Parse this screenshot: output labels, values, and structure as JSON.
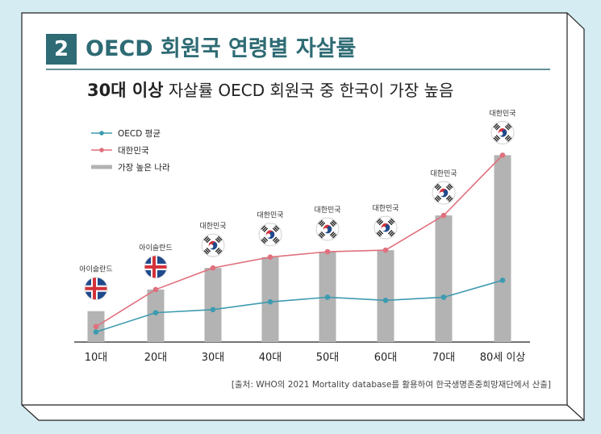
{
  "header": {
    "number": "2",
    "title": "OECD 회원국 연령별 자살률"
  },
  "subtitle": {
    "bold": "30대 이상",
    "rest": " 자살률 OECD 회원국 중 한국이 가장 높음"
  },
  "source": "[출처: WHO의 2021 Mortality database를 활용하여 한국생명존중희망재단에서 산출]",
  "colors": {
    "background": "#d6ecf3",
    "accent": "#2e6b74",
    "oecd": "#3d9bb0",
    "korea": "#e0707d",
    "bar": "#b3b3b3"
  },
  "chart_data": {
    "type": "bar",
    "categories": [
      "10대",
      "20대",
      "30대",
      "40대",
      "50대",
      "60대",
      "70대",
      "80세 이상"
    ],
    "legend_position": "top-left",
    "grid": false,
    "ylim": [
      0,
      140
    ],
    "series": [
      {
        "name": "OECD 평균",
        "type": "line",
        "values": [
          6.5,
          19,
          21,
          26,
          29,
          27,
          29,
          40
        ]
      },
      {
        "name": "대한민국",
        "type": "line",
        "values": [
          10,
          34,
          48,
          55,
          58.5,
          59.5,
          82,
          121
        ]
      },
      {
        "name": "가장 높은 나라",
        "type": "bar",
        "values": [
          20,
          34,
          48,
          55,
          58.5,
          59.5,
          82,
          121
        ]
      }
    ],
    "top_country": [
      "아이슬란드",
      "아이슬란드",
      "대한민국",
      "대한민국",
      "대한민국",
      "대한민국",
      "대한민국",
      "대한민국"
    ],
    "flag_icons": [
      "iceland-flag-icon",
      "iceland-flag-icon",
      "korea-flag-icon",
      "korea-flag-icon",
      "korea-flag-icon",
      "korea-flag-icon",
      "korea-flag-icon",
      "korea-flag-icon"
    ]
  }
}
